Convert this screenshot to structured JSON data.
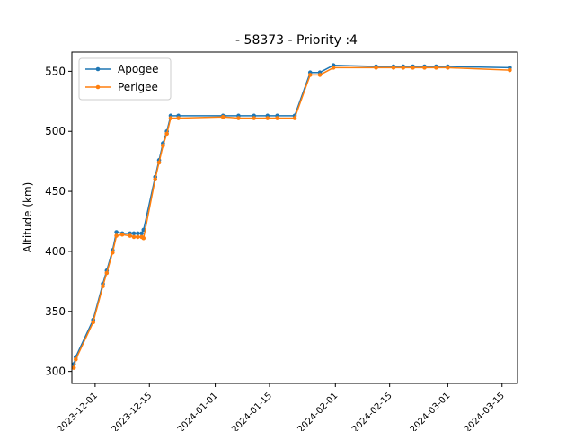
{
  "chart_data": {
    "type": "line",
    "title": "- 58373 - Priority :4",
    "xlabel": "",
    "ylabel": "Altitude (km)",
    "x_ticks": [
      "2023-12-01",
      "2023-12-15",
      "2024-01-01",
      "2024-01-15",
      "2024-02-01",
      "2024-02-15",
      "2024-03-01",
      "2024-03-15"
    ],
    "y_ticks": [
      300,
      350,
      400,
      450,
      500,
      550
    ],
    "xlim": [
      "2023-11-25",
      "2024-03-19"
    ],
    "ylim": [
      290,
      566
    ],
    "grid": false,
    "legend_position": "top-left",
    "series": [
      {
        "name": "Apogee",
        "color": "#1f77b4",
        "points": [
          [
            "2023-11-25T12:00",
            306
          ],
          [
            "2023-11-26",
            312
          ],
          [
            "2023-11-30T12:00",
            343
          ],
          [
            "2023-12-03",
            373
          ],
          [
            "2023-12-04",
            384
          ],
          [
            "2023-12-05T12:00",
            401
          ],
          [
            "2023-12-06T12:00",
            416
          ],
          [
            "2023-12-08",
            415
          ],
          [
            "2023-12-10",
            415
          ],
          [
            "2023-12-11",
            415
          ],
          [
            "2023-12-12",
            415
          ],
          [
            "2023-12-13",
            415
          ],
          [
            "2023-12-13T12:00",
            418
          ],
          [
            "2023-12-16T12:00",
            462
          ],
          [
            "2023-12-17T12:00",
            476
          ],
          [
            "2023-12-18T12:00",
            490
          ],
          [
            "2023-12-19T12:00",
            500
          ],
          [
            "2023-12-20T12:00",
            513
          ],
          [
            "2023-12-22T12:00",
            513
          ],
          [
            "2024-01-03",
            513
          ],
          [
            "2024-01-07",
            513
          ],
          [
            "2024-01-11",
            513
          ],
          [
            "2024-01-14T12:00",
            513
          ],
          [
            "2024-01-17",
            513
          ],
          [
            "2024-01-21T12:00",
            513
          ],
          [
            "2024-01-25T12:00",
            549
          ],
          [
            "2024-01-28",
            549
          ],
          [
            "2024-01-31T12:00",
            555
          ],
          [
            "2024-02-11T12:00",
            554
          ],
          [
            "2024-02-16",
            554
          ],
          [
            "2024-02-18T12:00",
            554
          ],
          [
            "2024-02-21",
            554
          ],
          [
            "2024-02-24",
            554
          ],
          [
            "2024-02-27",
            554
          ],
          [
            "2024-03-01",
            554
          ],
          [
            "2024-03-17",
            553
          ]
        ]
      },
      {
        "name": "Perigee",
        "color": "#ff7f0e",
        "points": [
          [
            "2023-11-25T12:00",
            303
          ],
          [
            "2023-11-26",
            310
          ],
          [
            "2023-11-30T12:00",
            341
          ],
          [
            "2023-12-03",
            371
          ],
          [
            "2023-12-04",
            382
          ],
          [
            "2023-12-05T12:00",
            399
          ],
          [
            "2023-12-06T12:00",
            413
          ],
          [
            "2023-12-08",
            414
          ],
          [
            "2023-12-10",
            413
          ],
          [
            "2023-12-11",
            412
          ],
          [
            "2023-12-12",
            412
          ],
          [
            "2023-12-13",
            412
          ],
          [
            "2023-12-13T12:00",
            411
          ],
          [
            "2023-12-16T12:00",
            460
          ],
          [
            "2023-12-17T12:00",
            474
          ],
          [
            "2023-12-18T12:00",
            488
          ],
          [
            "2023-12-19T12:00",
            498
          ],
          [
            "2023-12-20T12:00",
            511
          ],
          [
            "2023-12-22T12:00",
            511
          ],
          [
            "2024-01-03",
            512
          ],
          [
            "2024-01-07",
            511
          ],
          [
            "2024-01-11",
            511
          ],
          [
            "2024-01-14T12:00",
            511
          ],
          [
            "2024-01-17",
            511
          ],
          [
            "2024-01-21T12:00",
            511
          ],
          [
            "2024-01-25T12:00",
            547
          ],
          [
            "2024-01-28",
            547
          ],
          [
            "2024-01-31T12:00",
            553
          ],
          [
            "2024-02-11T12:00",
            553
          ],
          [
            "2024-02-16",
            553
          ],
          [
            "2024-02-18T12:00",
            553
          ],
          [
            "2024-02-21",
            553
          ],
          [
            "2024-02-24",
            553
          ],
          [
            "2024-02-27",
            553
          ],
          [
            "2024-03-01",
            553
          ],
          [
            "2024-03-17",
            551
          ]
        ]
      }
    ]
  }
}
